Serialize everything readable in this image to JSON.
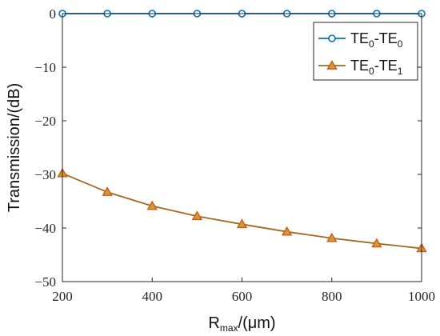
{
  "chart_data": {
    "type": "line",
    "title": "",
    "xlabel": "Rmax/(μm)",
    "xlabel_main": "R",
    "xlabel_sub": "max",
    "xlabel_rest": "/(μm)",
    "ylabel": "Transmission/(dB)",
    "xlim": [
      200,
      1000
    ],
    "ylim": [
      -50,
      0
    ],
    "xticks": [
      200,
      400,
      600,
      800,
      1000
    ],
    "yticks": [
      0,
      -10,
      -20,
      -30,
      -40,
      -50
    ],
    "ytick_labels": [
      "0",
      "−10",
      "−20",
      "−30",
      "−40",
      "−50"
    ],
    "grid": false,
    "legend_position": "top-right",
    "x": [
      200,
      300,
      400,
      500,
      600,
      700,
      800,
      900,
      1000
    ],
    "series": [
      {
        "name": "TE0-TE0",
        "legend_parts": [
          "TE",
          "0",
          "-TE",
          "0"
        ],
        "marker": "circle",
        "color": "#0072BD",
        "values": [
          0,
          0,
          0,
          0,
          0,
          0,
          0,
          0,
          0
        ]
      },
      {
        "name": "TE0-TE1",
        "legend_parts": [
          "TE",
          "0",
          "-TE",
          "1"
        ],
        "marker": "triangle",
        "color": "#D95319",
        "line_color": "#A0691F",
        "marker_fill": "#C8A030",
        "values": [
          -29.8,
          -33.3,
          -35.9,
          -37.8,
          -39.3,
          -40.7,
          -41.9,
          -42.9,
          -43.8
        ]
      }
    ]
  }
}
